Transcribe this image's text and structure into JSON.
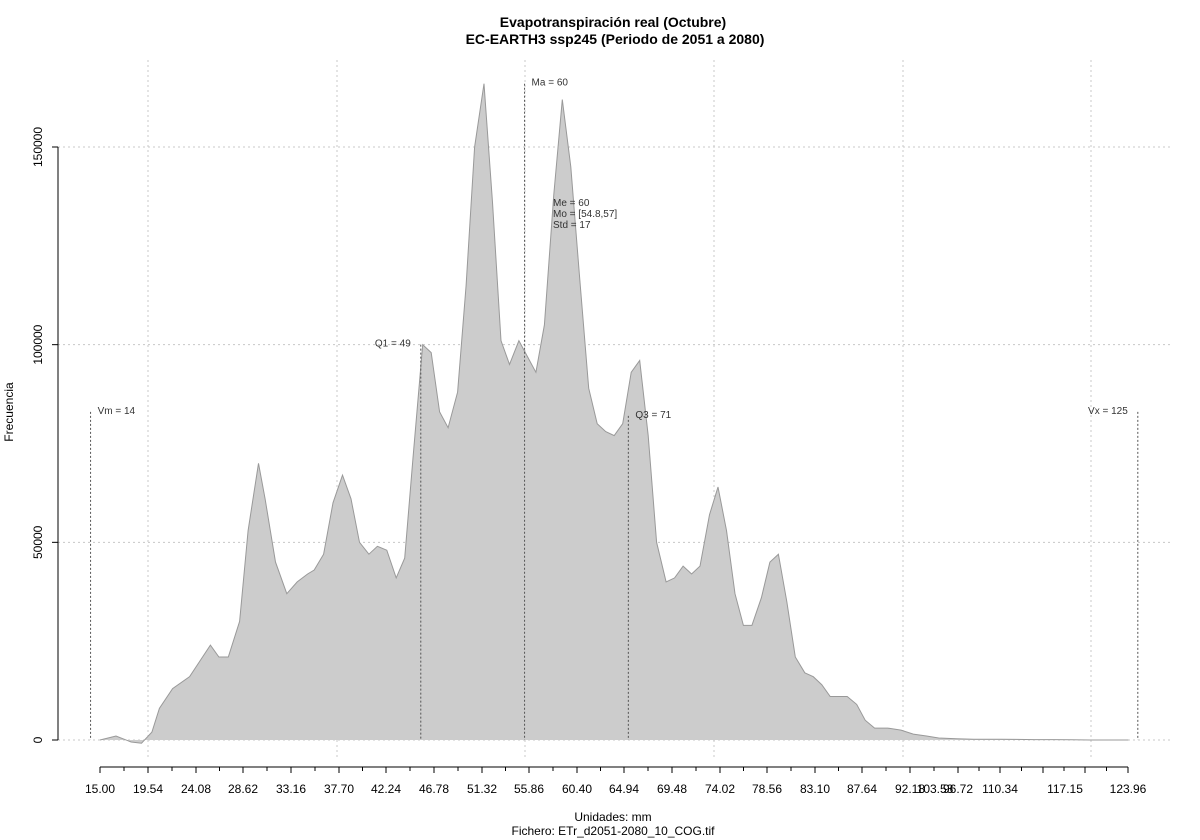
{
  "chart_data": {
    "type": "area",
    "title": "Evapotranspiración real (Octubre)",
    "subtitle": "EC-EARTH3 ssp245 (Periodo de 2051 a 2080)",
    "xlabel": "Unidades: mm",
    "file_caption": "Fichero: ETr_d2051-2080_10_COG.tif",
    "ylabel": "Frecuencia",
    "xlim": [
      15.0,
      123.96
    ],
    "ylim": [
      0,
      160000
    ],
    "x_tick_labels": [
      "15.00",
      "19.54",
      "24.08",
      "28.62",
      "33.16",
      "37.70",
      "42.24",
      "46.78",
      "51.32",
      "55.86",
      "60.40",
      "64.94",
      "69.48",
      "74.02",
      "78.56",
      "83.10",
      "87.64",
      "92.18",
      "96.72",
      "103.53",
      "110.34",
      "117.15",
      "123.96"
    ],
    "y_tick_labels": [
      "0",
      "50000",
      "100000",
      "150000"
    ],
    "x": [
      15.0,
      16.7,
      18.3,
      19.4,
      20.5,
      21.3,
      22.7,
      24.5,
      25.6,
      26.7,
      27.6,
      28.6,
      29.8,
      30.7,
      31.8,
      32.5,
      33.6,
      34.8,
      35.9,
      37.0,
      37.7,
      38.7,
      39.7,
      40.7,
      41.6,
      42.5,
      43.5,
      44.4,
      45.4,
      46.4,
      47.3,
      48.2,
      49.2,
      50.1,
      51.0,
      51.9,
      52.9,
      53.8,
      54.7,
      55.7,
      56.6,
      57.5,
      58.4,
      59.4,
      60.3,
      61.2,
      62.1,
      63.1,
      64.0,
      64.9,
      65.8,
      66.8,
      67.7,
      68.6,
      69.5,
      70.4,
      71.3,
      72.2,
      73.1,
      74.0,
      75.0,
      75.9,
      76.8,
      77.7,
      78.6,
      79.6,
      80.5,
      81.4,
      82.3,
      83.2,
      84.1,
      85.1,
      86.0,
      86.9,
      87.8,
      88.7,
      89.7,
      90.6,
      91.5,
      92.4,
      93.3,
      94.2,
      95.2,
      96.1,
      97.1,
      98.5,
      99.9,
      101.2,
      102.6,
      103.9,
      105.8,
      107.6,
      109.0,
      110.4,
      112.2,
      114.0,
      116.0,
      118.0,
      120.0,
      122.0,
      124.0
    ],
    "y": [
      0,
      1000,
      -500,
      -800,
      2000,
      8000,
      13000,
      16000,
      20000,
      24000,
      21000,
      21000,
      30000,
      53000,
      70000,
      61000,
      45000,
      37000,
      40000,
      42000,
      43000,
      47000,
      60000,
      67000,
      61000,
      50000,
      47000,
      49000,
      48000,
      41000,
      46000,
      72000,
      100000,
      98000,
      83000,
      79000,
      88000,
      115000,
      150000,
      166000,
      136000,
      101000,
      95000,
      101000,
      97000,
      93000,
      105000,
      138000,
      162000,
      145000,
      118000,
      89000,
      80000,
      78000,
      77000,
      80000,
      93000,
      96000,
      77000,
      50000,
      40000,
      41000,
      44000,
      42000,
      44000,
      57000,
      64000,
      53000,
      37000,
      29000,
      29000,
      36000,
      45000,
      47000,
      35000,
      21000,
      17000,
      16000,
      14000,
      11000,
      11000,
      11000,
      9000,
      5000,
      3000,
      3000,
      2500,
      1500,
      1000,
      500,
      300,
      200,
      200,
      200,
      150,
      100,
      100,
      50,
      0,
      0,
      0
    ],
    "fill_color": "#cccccc",
    "line_color": "#999999",
    "grid": true,
    "stats": [
      {
        "id": "vm",
        "label": "Vm = 14",
        "x": 14,
        "ymax": 83000,
        "anchor": "start"
      },
      {
        "id": "q1",
        "label": "Q1 = 49",
        "x": 49,
        "ymax": 100000,
        "anchor": "end"
      },
      {
        "id": "ma",
        "label": "Ma = 60",
        "x": 60,
        "ymax": 166000,
        "anchor": "start"
      },
      {
        "id": "q3",
        "label": "Q3 = 71",
        "x": 71,
        "ymax": 82000,
        "anchor": "start"
      },
      {
        "id": "vx",
        "label": "Vx = 125",
        "x": 125,
        "ymax": 83000,
        "anchor": "end"
      }
    ],
    "stats_box": [
      "Me = 60",
      "Mo = [54.8,57]",
      "Std = 17"
    ]
  }
}
